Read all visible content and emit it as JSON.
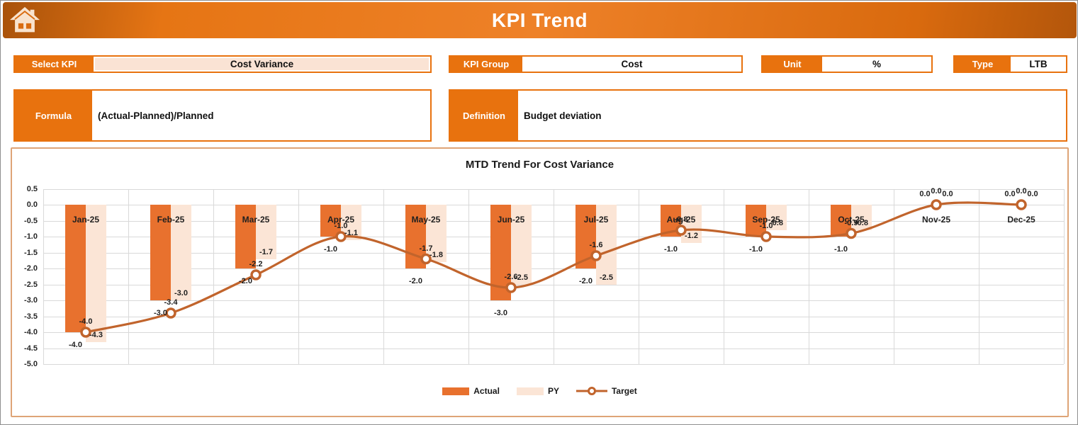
{
  "header": {
    "title": "KPI Trend"
  },
  "fields": {
    "select_kpi": {
      "label": "Select KPI",
      "value": "Cost Variance"
    },
    "kpi_group": {
      "label": "KPI Group",
      "value": "Cost"
    },
    "unit": {
      "label": "Unit",
      "value": "%"
    },
    "type": {
      "label": "Type",
      "value": "LTB"
    },
    "formula": {
      "label": "Formula",
      "value": "(Actual-Planned)/Planned"
    },
    "definition": {
      "label": "Definition",
      "value": "Budget deviation"
    }
  },
  "chart_data": {
    "type": "bar+line",
    "title": "MTD Trend For Cost Variance",
    "categories": [
      "Jan-25",
      "Feb-25",
      "Mar-25",
      "Apr-25",
      "May-25",
      "Jun-25",
      "Jul-25",
      "Aug-25",
      "Sep-25",
      "Oct-25",
      "Nov-25",
      "Dec-25"
    ],
    "series": [
      {
        "name": "Actual",
        "type": "bar",
        "color": "#e8712e",
        "values": [
          -4.0,
          -3.0,
          -2.0,
          -1.0,
          -2.0,
          -3.0,
          -2.0,
          -1.0,
          -1.0,
          -1.0,
          0.0,
          0.0
        ]
      },
      {
        "name": "PY",
        "type": "bar",
        "color": "#fbe5d6",
        "values": [
          -4.3,
          -3.0,
          -1.7,
          -1.1,
          -1.8,
          -2.5,
          -2.5,
          -1.2,
          -0.8,
          -0.8,
          0.0,
          0.0
        ]
      },
      {
        "name": "Target",
        "type": "line",
        "color": "#c1642c",
        "values": [
          -4.0,
          -3.4,
          -2.2,
          -1.0,
          -1.7,
          -2.6,
          -1.6,
          -0.8,
          -1.0,
          -0.9,
          0.0,
          0.0
        ]
      }
    ],
    "ylim": [
      -5.0,
      0.5
    ],
    "ytick_step": 0.5,
    "value_format_decimals": 1,
    "grid": true,
    "legend_position": "bottom"
  },
  "colors": {
    "accent_orange": "#e8720e",
    "bar_actual": "#e8712e",
    "bar_py": "#fbe5d6",
    "line_target": "#c1642c",
    "select_value_bg": "#fae3d4",
    "gridline": "#d9d9d9",
    "chart_border": "#dea477"
  }
}
